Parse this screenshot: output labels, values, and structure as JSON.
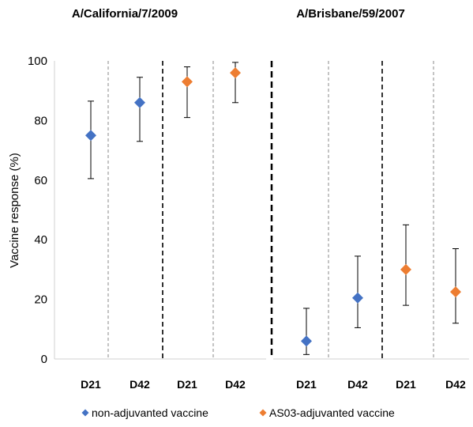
{
  "chart_data": {
    "type": "scatter",
    "ylabel": "Vaccine response (%)",
    "ylim": [
      0,
      100
    ],
    "yticks": [
      0,
      20,
      40,
      60,
      80,
      100
    ],
    "categories": [
      "D21",
      "D42",
      "D21",
      "D42"
    ],
    "panels": [
      {
        "title": "A/California/7/2009"
      },
      {
        "title": "A/Brisbane/59/2007"
      }
    ],
    "series": [
      {
        "name": "non-adjuvanted vaccine",
        "color": "#4472C4",
        "marker": "diamond",
        "points": [
          {
            "panel": 0,
            "category": 0,
            "value": 75,
            "ci": [
              60.5,
              86.5
            ]
          },
          {
            "panel": 0,
            "category": 1,
            "value": 86,
            "ci": [
              73,
              94.5
            ]
          },
          {
            "panel": 1,
            "category": 0,
            "value": 6,
            "ci": [
              1.5,
              17
            ]
          },
          {
            "panel": 1,
            "category": 1,
            "value": 20.5,
            "ci": [
              10.5,
              34.5
            ]
          }
        ]
      },
      {
        "name": "AS03-adjuvanted vaccine",
        "color": "#ED7D31",
        "marker": "diamond",
        "points": [
          {
            "panel": 0,
            "category": 2,
            "value": 93,
            "ci": [
              81,
              98
            ]
          },
          {
            "panel": 0,
            "category": 3,
            "value": 96,
            "ci": [
              86,
              99.5
            ]
          },
          {
            "panel": 1,
            "category": 2,
            "value": 30,
            "ci": [
              18,
              45
            ]
          },
          {
            "panel": 1,
            "category": 3,
            "value": 22.5,
            "ci": [
              12,
              37
            ]
          }
        ]
      }
    ],
    "legend": {
      "position": "bottom"
    },
    "grid": false
  }
}
